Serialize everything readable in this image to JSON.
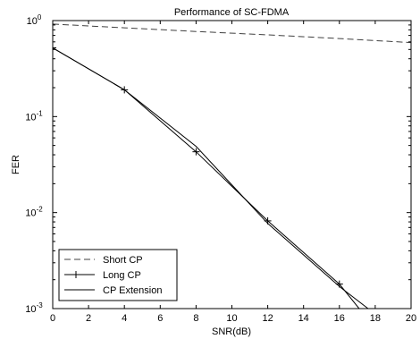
{
  "chart_data": {
    "type": "line",
    "title": "Performance of SC-FDMA",
    "xlabel": "SNR(dB)",
    "ylabel": "FER",
    "x_scale": "linear",
    "y_scale": "log",
    "xlim": [
      0,
      20
    ],
    "ylim": [
      0.001,
      1
    ],
    "grid": false,
    "legend_position": "bottom-left",
    "x_ticks": [
      0,
      2,
      4,
      6,
      8,
      10,
      12,
      14,
      16,
      18,
      20
    ],
    "x_tick_labels": [
      "0",
      "2",
      "4",
      "6",
      "8",
      "10",
      "12",
      "14",
      "16",
      "18",
      "20"
    ],
    "y_ticks": [
      0.001,
      0.01,
      0.1,
      1
    ],
    "y_tick_labels": [
      {
        "base": "10",
        "exp": "-3"
      },
      {
        "base": "10",
        "exp": "-2"
      },
      {
        "base": "10",
        "exp": "-1"
      },
      {
        "base": "10",
        "exp": "0"
      }
    ],
    "series": [
      {
        "name": "Short CP",
        "line_style": "dashed",
        "marker": "none",
        "color": "#404040",
        "x": [
          0,
          4,
          8,
          12,
          16,
          20
        ],
        "y": [
          0.92,
          0.84,
          0.77,
          0.71,
          0.65,
          0.59
        ]
      },
      {
        "name": "Long CP",
        "line_style": "solid",
        "marker": "plus",
        "color": "#000000",
        "x": [
          0,
          4,
          8,
          12,
          16,
          17.1
        ],
        "y": [
          0.52,
          0.19,
          0.043,
          0.0082,
          0.0018,
          0.001
        ]
      },
      {
        "name": "CP Extension",
        "line_style": "solid",
        "marker": "none",
        "color": "#000000",
        "x": [
          0,
          4,
          8,
          12,
          16,
          17.6
        ],
        "y": [
          0.52,
          0.19,
          0.049,
          0.0077,
          0.0017,
          0.001
        ]
      }
    ]
  }
}
